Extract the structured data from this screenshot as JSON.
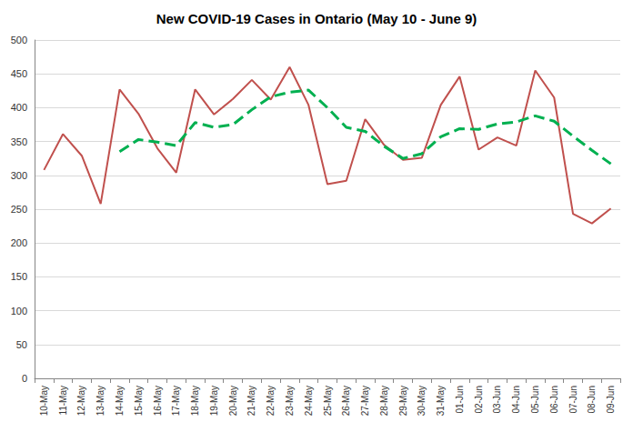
{
  "chart_data": {
    "type": "line",
    "title": "New COVID-19 Cases in Ontario (May 10 - June 9)",
    "categories": [
      "10-May",
      "11-May",
      "12-May",
      "13-May",
      "14-May",
      "15-May",
      "16-May",
      "17-May",
      "18-May",
      "19-May",
      "20-May",
      "21-May",
      "22-May",
      "23-May",
      "24-May",
      "25-May",
      "26-May",
      "27-May",
      "28-May",
      "29-May",
      "30-May",
      "31-May",
      "01-Jun",
      "02-Jun",
      "03-Jun",
      "04-Jun",
      "05-Jun",
      "06-Jun",
      "07-Jun",
      "08-Jun",
      "09-Jun"
    ],
    "series": [
      {
        "color": "#c0504d",
        "line_style": "solid",
        "marker": "none",
        "values": [
          308,
          361,
          329,
          258,
          427,
          391,
          340,
          304,
          427,
          390,
          413,
          441,
          412,
          460,
          404,
          287,
          292,
          383,
          345,
          323,
          326,
          404,
          446,
          338,
          356,
          344,
          455,
          415,
          243,
          229,
          251
        ]
      },
      {
        "color": "#00b050",
        "line_style": "dashed",
        "marker": "none",
        "values": [
          null,
          null,
          null,
          null,
          335,
          353,
          349,
          344,
          378,
          371,
          375,
          397,
          416,
          423,
          426,
          400,
          371,
          365,
          343,
          325,
          332,
          357,
          369,
          368,
          376,
          379,
          388,
          380,
          358,
          337,
          317
        ]
      }
    ],
    "ylim": [
      0,
      500
    ],
    "yticks": [
      0,
      50,
      100,
      150,
      200,
      250,
      300,
      350,
      400,
      450,
      500
    ],
    "grid": true
  }
}
